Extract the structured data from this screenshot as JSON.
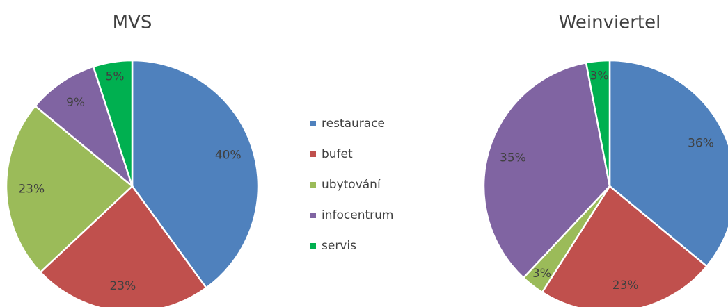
{
  "chart_data": [
    {
      "type": "pie",
      "title": "MVS",
      "categories": [
        "restaurace",
        "bufet",
        "ubytování",
        "infocentrum",
        "servis"
      ],
      "values": [
        40,
        23,
        23,
        9,
        5
      ],
      "value_labels": [
        "40%",
        "23%",
        "23%",
        "9%",
        "5%"
      ],
      "colors": [
        "#4f81bd",
        "#c0504d",
        "#9bbb59",
        "#8064a2",
        "#00b050"
      ],
      "legend": "center"
    },
    {
      "type": "pie",
      "title": "Weinviertel",
      "categories": [
        "restaurace",
        "bufet",
        "ubytování",
        "infocentrum",
        "servis"
      ],
      "values": [
        36,
        23,
        3,
        35,
        3
      ],
      "value_labels": [
        "36%",
        "23%",
        "3%",
        "35%",
        "3%"
      ],
      "colors": [
        "#4f81bd",
        "#c0504d",
        "#9bbb59",
        "#8064a2",
        "#00b050"
      ]
    }
  ]
}
